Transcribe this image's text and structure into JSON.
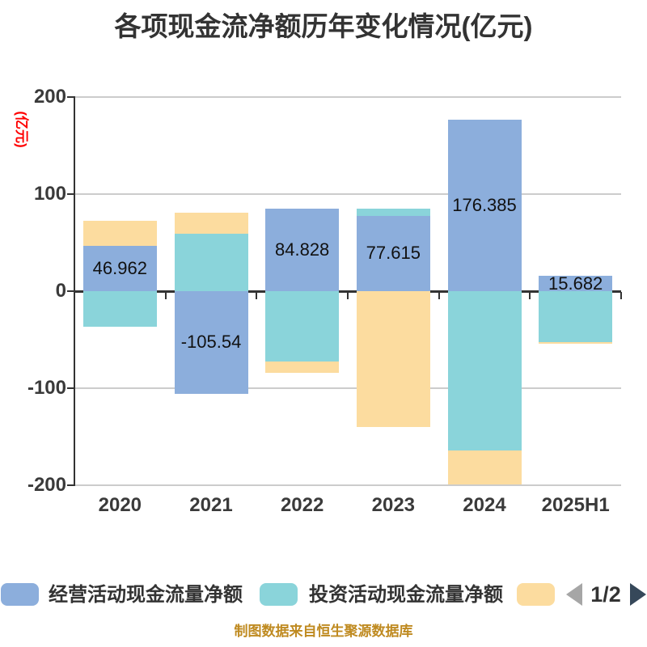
{
  "title": "各项现金流净额历年变化情况(亿元)",
  "y_axis_name": "(亿元)",
  "footer": "制图数据来自恒生聚源数据库",
  "colors": {
    "operating_series": "#8CAEDC",
    "investing_series": "#8AD4DA",
    "financing_series": "#FCDC9F",
    "title_text": "#333333",
    "axis_label_text": "#3a3a3a",
    "y_axis_name_text": "#ff0000",
    "gridline": "#cccccc",
    "zero_axis_line": "#333333",
    "footer_text": "#bf8a20",
    "pager_prev_arrow": "#a6a6a6",
    "pager_next_arrow": "#36485a"
  },
  "legend": {
    "items": [
      {
        "label": "经营活动现金流量净额",
        "color": "#8CAEDC"
      },
      {
        "label": "投资活动现金流量净额",
        "color": "#8AD4DA"
      },
      {
        "label": "",
        "color": "#FCDC9F"
      }
    ],
    "pager": {
      "text": "1/2"
    }
  },
  "chart_data": {
    "type": "bar",
    "stacked": true,
    "grid": true,
    "legend_position": "bottom",
    "categories": [
      "2020",
      "2021",
      "2022",
      "2023",
      "2024",
      "2025H1"
    ],
    "series": [
      {
        "name": "经营活动现金流量净额",
        "color": "#8CAEDC",
        "values": [
          46.962,
          -105.54,
          84.828,
          77.615,
          176.385,
          15.682
        ],
        "labeled": true
      },
      {
        "name": "投资活动现金流量净额",
        "color": "#8AD4DA",
        "values": [
          -36.7,
          58.9,
          -72.7,
          7.1,
          -164.4,
          -52.8
        ],
        "estimated_from_pixels": true
      },
      {
        "name": "",
        "color": "#FCDC9F",
        "values": [
          25.5,
          21.7,
          -11.4,
          -140.3,
          -35.0,
          -1.3
        ],
        "estimated_from_pixels": true
      }
    ],
    "value_labels": [
      "46.962",
      "-105.54",
      "84.828",
      "77.615",
      "176.385",
      "15.682"
    ],
    "ylabel": "(亿元)",
    "ylim": [
      -200,
      200
    ],
    "yticks": [
      200,
      100,
      0,
      -100,
      -200
    ]
  }
}
